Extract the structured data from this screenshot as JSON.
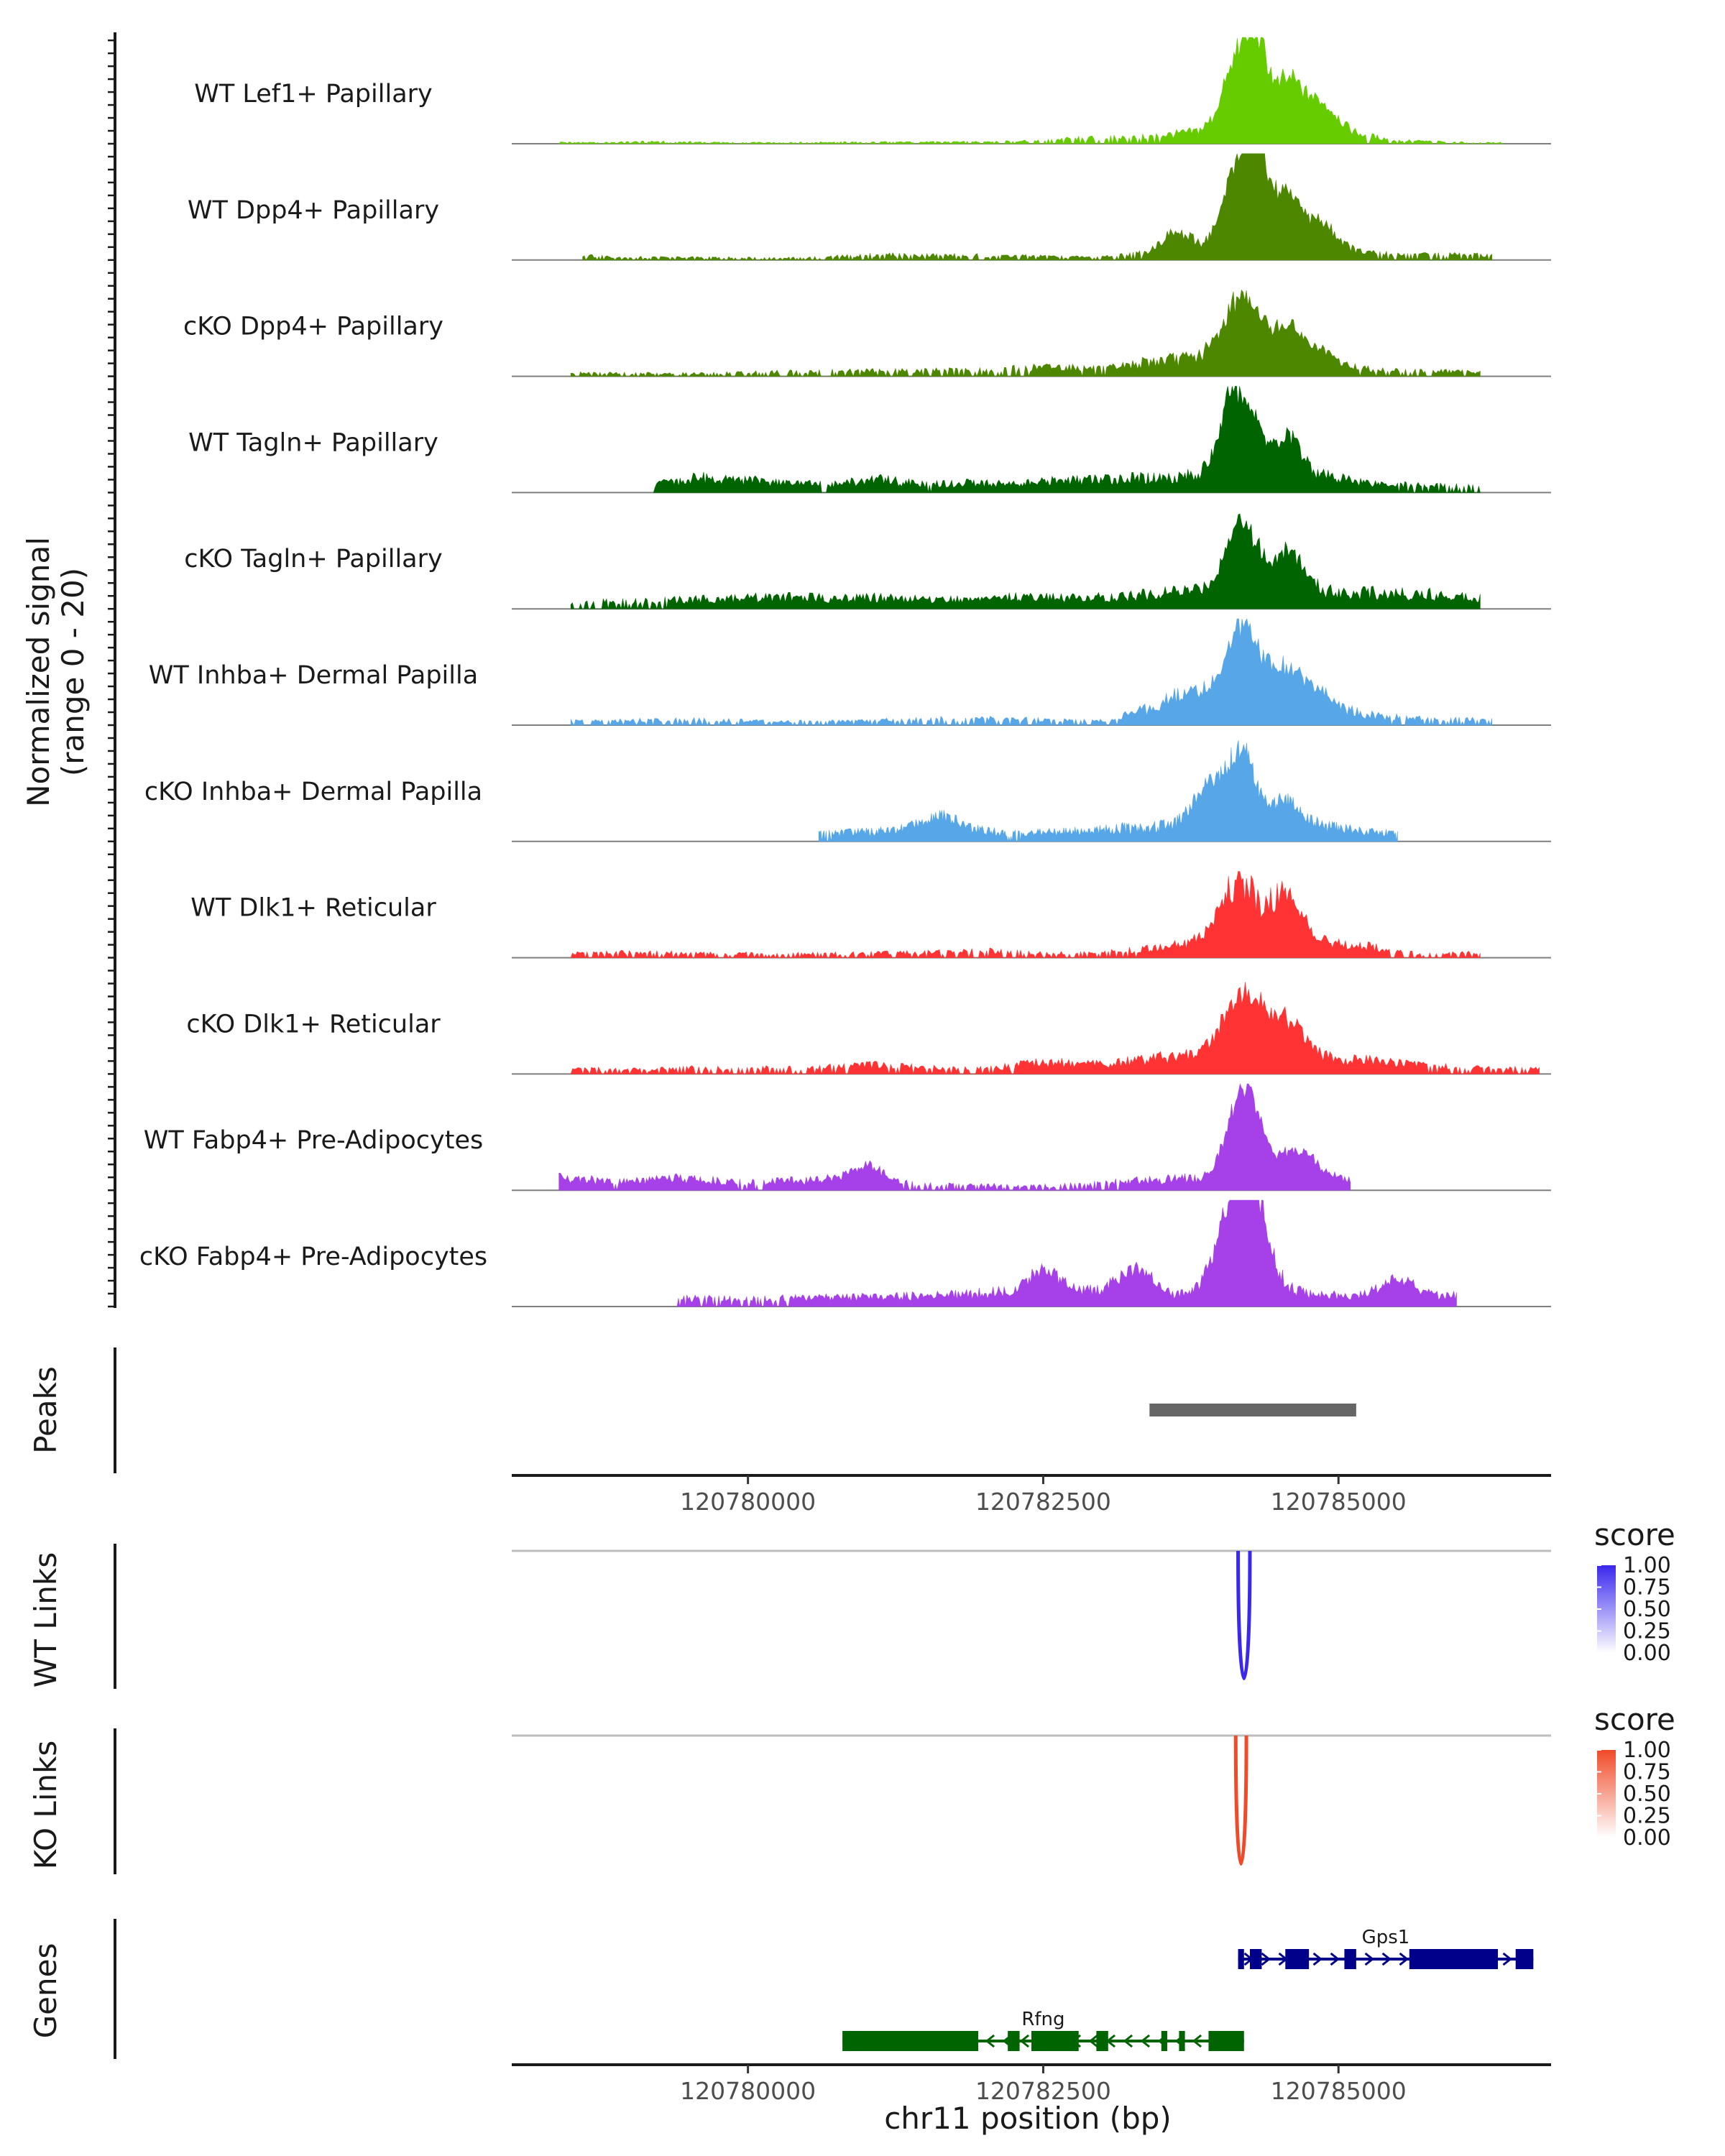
{
  "chart_data": {
    "type": "area",
    "title": "",
    "ylabel": "Normalized signal",
    "ylabel_range": "(range 0 - 20)",
    "ylim": [
      0,
      20
    ],
    "xlim": [
      120778000,
      120786800
    ],
    "xlabel": "chr11 position (bp)",
    "x_ticks": [
      120780000,
      120782500,
      120785000
    ],
    "x_tick_labels": [
      "120780000",
      "120782500",
      "120785000"
    ],
    "tracks": [
      {
        "name": "WT Lef1+ Papillary",
        "color": "#66CC00",
        "bg": [
          [
            120778400,
            0.3
          ],
          [
            120778700,
            0.2
          ],
          [
            120779200,
            0.4
          ],
          [
            120779900,
            0.2
          ],
          [
            120780900,
            0.3
          ],
          [
            120781500,
            0.3
          ],
          [
            120782000,
            0.4
          ],
          [
            120782400,
            0.6
          ],
          [
            120782800,
            1.0
          ],
          [
            120783300,
            1.2
          ],
          [
            120783600,
            1.8
          ],
          [
            120783800,
            2.2
          ],
          [
            120784000,
            3.0
          ],
          [
            120784800,
            2.8
          ],
          [
            120785100,
            2.0
          ],
          [
            120785500,
            0.6
          ],
          [
            120786000,
            0.3
          ],
          [
            120786400,
            0.2
          ]
        ],
        "peaks": [
          [
            120784180,
            14.5,
            130
          ],
          [
            120784330,
            9.0,
            90
          ],
          [
            120784580,
            8.5,
            110
          ],
          [
            120784850,
            5.0,
            130
          ]
        ]
      },
      {
        "name": "WT Dpp4+ Papillary",
        "color": "#4D8700",
        "bg": [
          [
            120778600,
            0.8
          ],
          [
            120779000,
            0.5
          ],
          [
            120780500,
            0.4
          ],
          [
            120781100,
            1.0
          ],
          [
            120781600,
            0.9
          ],
          [
            120782300,
            0.8
          ],
          [
            120782900,
            0.5
          ],
          [
            120783300,
            1.2
          ],
          [
            120783700,
            3.0
          ],
          [
            120784000,
            2.6
          ],
          [
            120784800,
            3.5
          ],
          [
            120785200,
            1.4
          ],
          [
            120785600,
            1.0
          ],
          [
            120785900,
            1.0
          ],
          [
            120786300,
            0.9
          ]
        ],
        "peaks": [
          [
            120783600,
            2.5,
            100
          ],
          [
            120784180,
            17.5,
            130
          ],
          [
            120784330,
            10.0,
            80
          ],
          [
            120784570,
            9.5,
            100
          ],
          [
            120784850,
            4.0,
            120
          ]
        ]
      },
      {
        "name": "cKO Dpp4+ Papillary",
        "color": "#4D8700",
        "bg": [
          [
            120778500,
            0.6
          ],
          [
            120779600,
            0.5
          ],
          [
            120780200,
            0.8
          ],
          [
            120780800,
            1.0
          ],
          [
            120781400,
            1.1
          ],
          [
            120782000,
            1.2
          ],
          [
            120782600,
            1.8
          ],
          [
            120783000,
            1.4
          ],
          [
            120783500,
            3.0
          ],
          [
            120783900,
            3.5
          ],
          [
            120784800,
            2.5
          ],
          [
            120785300,
            1.3
          ],
          [
            120785800,
            1.0
          ],
          [
            120786200,
            0.8
          ]
        ],
        "peaks": [
          [
            120784190,
            12.0,
            150
          ],
          [
            120784580,
            6.5,
            120
          ],
          [
            120784850,
            2.0,
            110
          ]
        ]
      },
      {
        "name": "WT Tagln+ Papillary",
        "color": "#006400",
        "bg": [
          [
            120779200,
            1.5
          ],
          [
            120779600,
            2.8
          ],
          [
            120780200,
            2.0
          ],
          [
            120780700,
            1.5
          ],
          [
            120781100,
            2.5
          ],
          [
            120781500,
            1.5
          ],
          [
            120781900,
            1.8
          ],
          [
            120782300,
            1.7
          ],
          [
            120782700,
            2.3
          ],
          [
            120783500,
            2.8
          ],
          [
            120783900,
            3.5
          ],
          [
            120784400,
            4.0
          ],
          [
            120784900,
            3.0
          ],
          [
            120785300,
            1.8
          ],
          [
            120785700,
            1.4
          ],
          [
            120786200,
            1.2
          ]
        ],
        "peaks": [
          [
            120784120,
            16.0,
            110
          ],
          [
            120784320,
            6.0,
            80
          ],
          [
            120784580,
            7.0,
            110
          ]
        ]
      },
      {
        "name": "cKO Tagln+ Papillary",
        "color": "#006400",
        "bg": [
          [
            120778500,
            1.2
          ],
          [
            120779200,
            1.5
          ],
          [
            120779600,
            1.8
          ],
          [
            120780200,
            2.2
          ],
          [
            120780700,
            2.0
          ],
          [
            120781100,
            2.1
          ],
          [
            120781500,
            1.8
          ],
          [
            120781900,
            1.8
          ],
          [
            120782300,
            2.3
          ],
          [
            120782700,
            2.0
          ],
          [
            120783300,
            2.5
          ],
          [
            120783800,
            3.5
          ],
          [
            120784400,
            4.0
          ],
          [
            120784800,
            3.5
          ],
          [
            120785200,
            3.0
          ],
          [
            120785700,
            2.8
          ],
          [
            120786200,
            2.2
          ]
        ],
        "peaks": [
          [
            120784180,
            13.0,
            130
          ],
          [
            120784580,
            7.5,
            110
          ]
        ]
      },
      {
        "name": "WT Inhba+ Dermal Papilla",
        "color": "#56A6E8",
        "bg": [
          [
            120778500,
            0.8
          ],
          [
            120779500,
            1.0
          ],
          [
            120780300,
            0.7
          ],
          [
            120781000,
            0.8
          ],
          [
            120781700,
            1.3
          ],
          [
            120782000,
            1.2
          ],
          [
            120782500,
            1.0
          ],
          [
            120783000,
            0.8
          ],
          [
            120783500,
            3.5
          ],
          [
            120783700,
            3.8
          ],
          [
            120784800,
            3.5
          ],
          [
            120785300,
            1.8
          ],
          [
            120785700,
            1.2
          ],
          [
            120786300,
            1.0
          ]
        ],
        "peaks": [
          [
            120783750,
            2.5,
            150
          ],
          [
            120784180,
            15.0,
            140
          ],
          [
            120784550,
            6.5,
            150
          ],
          [
            120784850,
            2.5,
            120
          ]
        ]
      },
      {
        "name": "cKO Inhba+ Dermal Papilla",
        "color": "#56A6E8",
        "bg": [
          [
            120780600,
            1.5
          ],
          [
            120781400,
            2.2
          ],
          [
            120781600,
            3.0
          ],
          [
            120782200,
            1.5
          ],
          [
            120782900,
            2.0
          ],
          [
            120783200,
            2.5
          ],
          [
            120783600,
            3.0
          ],
          [
            120784000,
            3.0
          ],
          [
            120784500,
            3.0
          ],
          [
            120784800,
            3.0
          ],
          [
            120785200,
            2.0
          ],
          [
            120785500,
            1.5
          ]
        ],
        "peaks": [
          [
            120781600,
            2.0,
            150
          ],
          [
            120783900,
            8.0,
            120
          ],
          [
            120784180,
            14.0,
            110
          ],
          [
            120784550,
            5.0,
            120
          ]
        ]
      },
      {
        "name": "WT Dlk1+ Reticular",
        "color": "#FF3333",
        "bg": [
          [
            120778500,
            0.8
          ],
          [
            120779000,
            1.0
          ],
          [
            120779700,
            0.8
          ],
          [
            120780400,
            0.7
          ],
          [
            120781000,
            0.8
          ],
          [
            120781500,
            1.0
          ],
          [
            120782000,
            1.4
          ],
          [
            120782400,
            0.9
          ],
          [
            120782900,
            0.8
          ],
          [
            120783300,
            1.5
          ],
          [
            120783800,
            2.8
          ],
          [
            120784300,
            7.0
          ],
          [
            120784800,
            3.5
          ],
          [
            120785300,
            2.0
          ],
          [
            120785700,
            0.6
          ],
          [
            120786200,
            1.0
          ]
        ],
        "peaks": [
          [
            120784130,
            8.0,
            150
          ],
          [
            120784570,
            7.5,
            110
          ]
        ]
      },
      {
        "name": "cKO Dlk1+ Reticular",
        "color": "#FF3333",
        "bg": [
          [
            120778500,
            1.0
          ],
          [
            120779100,
            0.8
          ],
          [
            120779700,
            1.2
          ],
          [
            120780500,
            1.0
          ],
          [
            120781000,
            1.8
          ],
          [
            120781500,
            1.2
          ],
          [
            120782000,
            1.0
          ],
          [
            120782500,
            2.2
          ],
          [
            120783000,
            1.8
          ],
          [
            120783500,
            3.0
          ],
          [
            120783900,
            3.5
          ],
          [
            120784400,
            5.0
          ],
          [
            120784900,
            3.0
          ],
          [
            120785300,
            2.5
          ],
          [
            120785800,
            1.5
          ],
          [
            120786300,
            1.0
          ],
          [
            120786700,
            1.0
          ]
        ],
        "peaks": [
          [
            120784180,
            10.5,
            150
          ],
          [
            120784550,
            6.0,
            150
          ]
        ]
      },
      {
        "name": "WT Fabp4+ Pre-Adipocytes",
        "color": "#A640E8",
        "bg": [
          [
            120778400,
            2.5
          ],
          [
            120778900,
            1.5
          ],
          [
            120779400,
            2.2
          ],
          [
            120780000,
            1.5
          ],
          [
            120780400,
            1.8
          ],
          [
            120781000,
            2.5
          ],
          [
            120781400,
            1.2
          ],
          [
            120782000,
            1.0
          ],
          [
            120782600,
            0.8
          ],
          [
            120783300,
            1.8
          ],
          [
            120783700,
            2.2
          ],
          [
            120784000,
            2.0
          ],
          [
            120784600,
            2.0
          ],
          [
            120785100,
            1.8
          ]
        ],
        "peaks": [
          [
            120781000,
            2.5,
            120
          ],
          [
            120784200,
            18.0,
            130
          ],
          [
            120784650,
            6.0,
            160
          ]
        ]
      },
      {
        "name": "cKO Fabp4+ Pre-Adipocytes",
        "color": "#A640E8",
        "bg": [
          [
            120779400,
            1.5
          ],
          [
            120780200,
            1.5
          ],
          [
            120781600,
            2.0
          ],
          [
            120782000,
            2.5
          ],
          [
            120782500,
            3.0
          ],
          [
            120782900,
            2.8
          ],
          [
            120783300,
            3.5
          ],
          [
            120783600,
            1.8
          ],
          [
            120784100,
            4.0
          ],
          [
            120784600,
            3.0
          ],
          [
            120785000,
            2.0
          ],
          [
            120785500,
            2.5
          ],
          [
            120786000,
            2.0
          ]
        ],
        "peaks": [
          [
            120782500,
            4.0,
            120
          ],
          [
            120783300,
            4.0,
            140
          ],
          [
            120784120,
            16.0,
            140
          ],
          [
            120784300,
            12.0,
            120
          ],
          [
            120785500,
            3.0,
            120
          ]
        ]
      }
    ],
    "peaks_track": {
      "label": "Peaks",
      "color": "#666666",
      "regions": [
        [
          120783400,
          120785150
        ]
      ]
    },
    "link_tracks": [
      {
        "label": "WT Links",
        "color": "#3A28EE",
        "links": [
          {
            "start": 120784150,
            "end": 120784250,
            "score": 1.0
          }
        ],
        "legend": {
          "title": "score",
          "ticks": [
            "1.00",
            "0.75",
            "0.50",
            "0.25",
            "0.00"
          ],
          "low": "#ffffff",
          "high": "#3A28EE"
        }
      },
      {
        "label": "KO Links",
        "color": "#F04A28",
        "links": [
          {
            "start": 120784130,
            "end": 120784220,
            "score": 1.0
          }
        ],
        "legend": {
          "title": "score",
          "ticks": [
            "1.00",
            "0.75",
            "0.50",
            "0.25",
            "0.00"
          ],
          "low": "#ffffff",
          "high": "#F04A28"
        }
      }
    ],
    "genes_track": {
      "label": "Genes",
      "genes": [
        {
          "name": "Gps1",
          "strand": "+",
          "color": "#00008B",
          "start": 120784150,
          "end": 120786650,
          "exons": [
            [
              120784150,
              120784200
            ],
            [
              120784250,
              120784350
            ],
            [
              120784550,
              120784750
            ],
            [
              120785050,
              120785150
            ],
            [
              120785600,
              120786350
            ],
            [
              120786500,
              120786650
            ]
          ]
        },
        {
          "name": "Rfng",
          "strand": "-",
          "color": "#006400",
          "start": 120780800,
          "end": 120784200,
          "exons": [
            [
              120780800,
              120781950
            ],
            [
              120782200,
              120782300
            ],
            [
              120782400,
              120782800
            ],
            [
              120782950,
              120783050
            ],
            [
              120783500,
              120783550
            ],
            [
              120783650,
              120783700
            ],
            [
              120783900,
              120784200
            ]
          ]
        }
      ]
    }
  }
}
